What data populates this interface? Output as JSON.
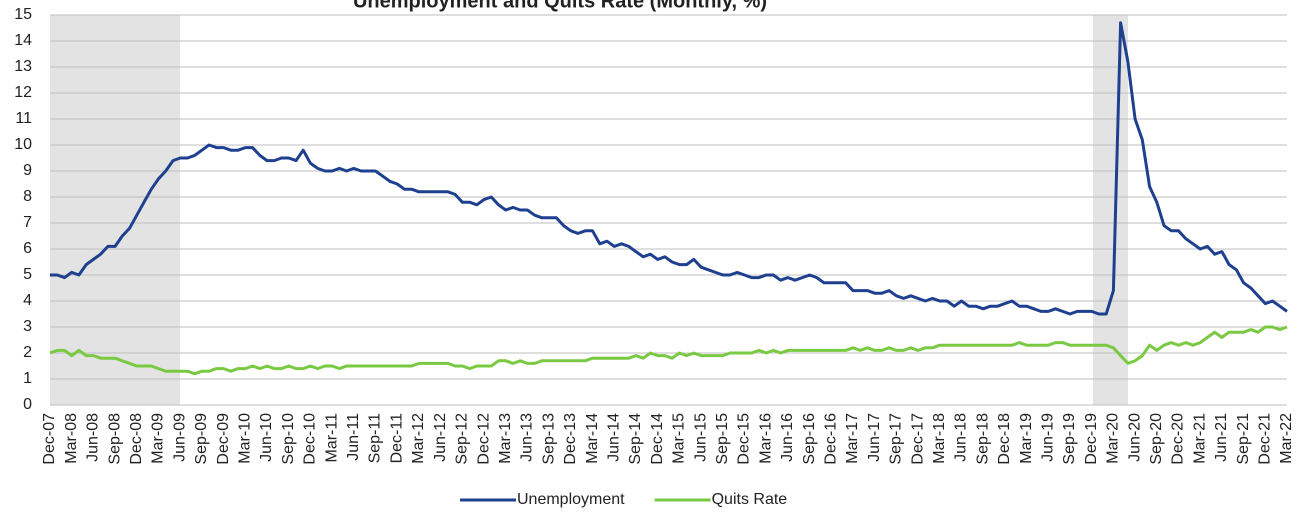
{
  "chart_data": {
    "type": "line",
    "title": "Unemployment and Quits Rate (Monthly, %)",
    "categories": [
      "Dec-07",
      null,
      null,
      "Mar-08",
      null,
      null,
      "Jun-08",
      null,
      null,
      "Sep-08",
      null,
      null,
      "Dec-08",
      null,
      null,
      "Mar-09",
      null,
      null,
      "Jun-09",
      null,
      null,
      "Sep-09",
      null,
      null,
      "Dec-09",
      null,
      null,
      "Mar-10",
      null,
      null,
      "Jun-10",
      null,
      null,
      "Sep-10",
      null,
      null,
      "Dec-10",
      null,
      null,
      "Mar-11",
      null,
      null,
      "Jun-11",
      null,
      null,
      "Sep-11",
      null,
      null,
      "Dec-11",
      null,
      null,
      "Mar-12",
      null,
      null,
      "Jun-12",
      null,
      null,
      "Sep-12",
      null,
      null,
      "Dec-12",
      null,
      null,
      "Mar-13",
      null,
      null,
      "Jun-13",
      null,
      null,
      "Sep-13",
      null,
      null,
      "Dec-13",
      null,
      null,
      "Mar-14",
      null,
      null,
      "Jun-14",
      null,
      null,
      "Sep-14",
      null,
      null,
      "Dec-14",
      null,
      null,
      "Mar-15",
      null,
      null,
      "Jun-15",
      null,
      null,
      "Sep-15",
      null,
      null,
      "Dec-15",
      null,
      null,
      "Mar-16",
      null,
      null,
      "Jun-16",
      null,
      null,
      "Sep-16",
      null,
      null,
      "Dec-16",
      null,
      null,
      "Mar-17",
      null,
      null,
      "Jun-17",
      null,
      null,
      "Sep-17",
      null,
      null,
      "Dec-17",
      null,
      null,
      "Mar-18",
      null,
      null,
      "Jun-18",
      null,
      null,
      "Sep-18",
      null,
      null,
      "Dec-18",
      null,
      null,
      "Mar-19",
      null,
      null,
      "Jun-19",
      null,
      null,
      "Sep-19",
      null,
      null,
      "Dec-19",
      null,
      null,
      "Mar-20",
      null,
      null,
      "Jun-20",
      null,
      null,
      "Sep-20",
      null,
      null,
      "Dec-20",
      null,
      null,
      "Mar-21",
      null,
      null,
      "Jun-21",
      null,
      null,
      "Sep-21",
      null,
      null,
      "Dec-21",
      null,
      null,
      "Mar-22"
    ],
    "series": [
      {
        "name": "Unemployment",
        "color": "#1f3f8f",
        "values": [
          5.0,
          5.0,
          4.9,
          5.1,
          5.0,
          5.4,
          5.6,
          5.8,
          6.1,
          6.1,
          6.5,
          6.8,
          7.3,
          7.8,
          8.3,
          8.7,
          9.0,
          9.4,
          9.5,
          9.5,
          9.6,
          9.8,
          10.0,
          9.9,
          9.9,
          9.8,
          9.8,
          9.9,
          9.9,
          9.6,
          9.4,
          9.4,
          9.5,
          9.5,
          9.4,
          9.8,
          9.3,
          9.1,
          9.0,
          9.0,
          9.1,
          9.0,
          9.1,
          9.0,
          9.0,
          9.0,
          8.8,
          8.6,
          8.5,
          8.3,
          8.3,
          8.2,
          8.2,
          8.2,
          8.2,
          8.2,
          8.1,
          7.8,
          7.8,
          7.7,
          7.9,
          8.0,
          7.7,
          7.5,
          7.6,
          7.5,
          7.5,
          7.3,
          7.2,
          7.2,
          7.2,
          6.9,
          6.7,
          6.6,
          6.7,
          6.7,
          6.2,
          6.3,
          6.1,
          6.2,
          6.1,
          5.9,
          5.7,
          5.8,
          5.6,
          5.7,
          5.5,
          5.4,
          5.4,
          5.6,
          5.3,
          5.2,
          5.1,
          5.0,
          5.0,
          5.1,
          5.0,
          4.9,
          4.9,
          5.0,
          5.0,
          4.8,
          4.9,
          4.8,
          4.9,
          5.0,
          4.9,
          4.7,
          4.7,
          4.7,
          4.7,
          4.4,
          4.4,
          4.4,
          4.3,
          4.3,
          4.4,
          4.2,
          4.1,
          4.2,
          4.1,
          4.0,
          4.1,
          4.0,
          4.0,
          3.8,
          4.0,
          3.8,
          3.8,
          3.7,
          3.8,
          3.8,
          3.9,
          4.0,
          3.8,
          3.8,
          3.7,
          3.6,
          3.6,
          3.7,
          3.6,
          3.5,
          3.6,
          3.6,
          3.6,
          3.5,
          3.5,
          4.4,
          14.7,
          13.2,
          11.0,
          10.2,
          8.4,
          7.8,
          6.9,
          6.7,
          6.7,
          6.4,
          6.2,
          6.0,
          6.1,
          5.8,
          5.9,
          5.4,
          5.2,
          4.7,
          4.5,
          4.2,
          3.9,
          4.0,
          3.8,
          3.6
        ]
      },
      {
        "name": "Quits Rate",
        "color": "#7ac943",
        "values": [
          2.0,
          2.1,
          2.1,
          1.9,
          2.1,
          1.9,
          1.9,
          1.8,
          1.8,
          1.8,
          1.7,
          1.6,
          1.5,
          1.5,
          1.5,
          1.4,
          1.3,
          1.3,
          1.3,
          1.3,
          1.2,
          1.3,
          1.3,
          1.4,
          1.4,
          1.3,
          1.4,
          1.4,
          1.5,
          1.4,
          1.5,
          1.4,
          1.4,
          1.5,
          1.4,
          1.4,
          1.5,
          1.4,
          1.5,
          1.5,
          1.4,
          1.5,
          1.5,
          1.5,
          1.5,
          1.5,
          1.5,
          1.5,
          1.5,
          1.5,
          1.5,
          1.6,
          1.6,
          1.6,
          1.6,
          1.6,
          1.5,
          1.5,
          1.4,
          1.5,
          1.5,
          1.5,
          1.7,
          1.7,
          1.6,
          1.7,
          1.6,
          1.6,
          1.7,
          1.7,
          1.7,
          1.7,
          1.7,
          1.7,
          1.7,
          1.8,
          1.8,
          1.8,
          1.8,
          1.8,
          1.8,
          1.9,
          1.8,
          2.0,
          1.9,
          1.9,
          1.8,
          2.0,
          1.9,
          2.0,
          1.9,
          1.9,
          1.9,
          1.9,
          2.0,
          2.0,
          2.0,
          2.0,
          2.1,
          2.0,
          2.1,
          2.0,
          2.1,
          2.1,
          2.1,
          2.1,
          2.1,
          2.1,
          2.1,
          2.1,
          2.1,
          2.2,
          2.1,
          2.2,
          2.1,
          2.1,
          2.2,
          2.1,
          2.1,
          2.2,
          2.1,
          2.2,
          2.2,
          2.3,
          2.3,
          2.3,
          2.3,
          2.3,
          2.3,
          2.3,
          2.3,
          2.3,
          2.3,
          2.3,
          2.4,
          2.3,
          2.3,
          2.3,
          2.3,
          2.4,
          2.4,
          2.3,
          2.3,
          2.3,
          2.3,
          2.3,
          2.3,
          2.2,
          1.9,
          1.6,
          1.7,
          1.9,
          2.3,
          2.1,
          2.3,
          2.4,
          2.3,
          2.4,
          2.3,
          2.4,
          2.6,
          2.8,
          2.6,
          2.8,
          2.8,
          2.8,
          2.9,
          2.8,
          3.0,
          3.0,
          2.9,
          3.0
        ]
      }
    ],
    "ylim": [
      0,
      15
    ],
    "yticks": [
      0,
      1,
      2,
      3,
      4,
      5,
      6,
      7,
      8,
      9,
      10,
      11,
      12,
      13,
      14,
      15
    ],
    "grid": true,
    "legend": "bottom"
  }
}
